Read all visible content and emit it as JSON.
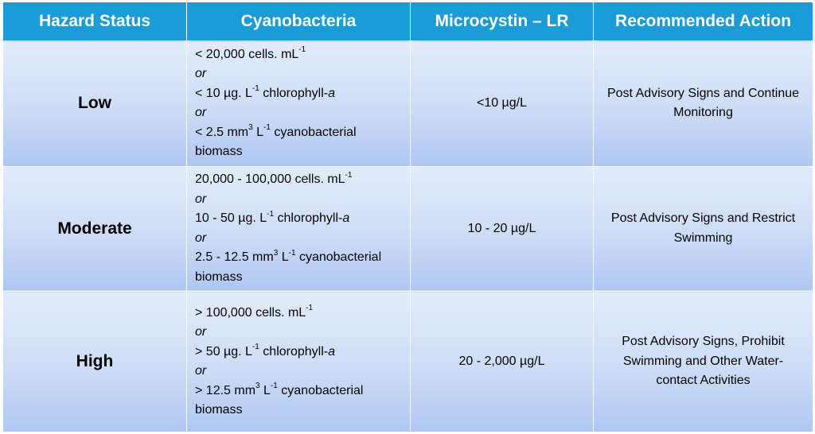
{
  "header": {
    "hazard_status": "Hazard Status",
    "cyanobacteria": "Cyanobacteria",
    "microcystin": "Microcystin – LR",
    "recommended_action": "Recommended Action"
  },
  "rows": [
    {
      "status": "Low",
      "cyano": {
        "cells_pre": "< 20,000 cells. mL",
        "cells_sup": "-1",
        "or1": "or",
        "chl_pre": "< 10 µg. L",
        "chl_sup": "-1",
        "chl_post": " chlorophyll-",
        "chl_a": "a",
        "or2": "or",
        "bio_pre": "< 2.5 mm",
        "bio_sup1": "3",
        "bio_mid": " L",
        "bio_sup2": "-1",
        "bio_post": " cyanobacterial biomass"
      },
      "microcystin": "<10 µg/L",
      "action": "Post Advisory Signs  and Continue Monitoring"
    },
    {
      "status": "Moderate",
      "cyano": {
        "cells_pre": "20,000 - 100,000 cells. mL",
        "cells_sup": "-1",
        "or1": "or",
        "chl_pre": "10 - 50 µg. L",
        "chl_sup": "-1",
        "chl_post": " chlorophyll-",
        "chl_a": "a",
        "or2": "or",
        "bio_pre": "2.5 - 12.5 mm",
        "bio_sup1": "3",
        "bio_mid": " L",
        "bio_sup2": "-1",
        "bio_post": " cyanobacterial biomass"
      },
      "microcystin": "10 - 20 µg/L",
      "action": "Post Advisory Signs and Restrict Swimming"
    },
    {
      "status": "High",
      "cyano": {
        "cells_pre": "> 100,000 cells. mL",
        "cells_sup": "-1",
        "or1": "or",
        "chl_pre": "> 50 µg. L",
        "chl_sup": "-1",
        "chl_post": " chlorophyll-",
        "chl_a": "a",
        "or2": "or",
        "bio_pre": "> 12.5 mm",
        "bio_sup1": "3",
        "bio_mid": " L",
        "bio_sup2": "-1",
        "bio_post": " cyanobacterial biomass"
      },
      "microcystin": "20 - 2,000 µg/L",
      "action": "Post Advisory Signs, Prohibit Swimming and Other Water-contact Activities"
    }
  ],
  "colors": {
    "header_bg": "#1b9bd8",
    "header_text": "#ffffff",
    "cell_top": "#e2ecfb",
    "cell_bottom": "#aec7f2"
  }
}
